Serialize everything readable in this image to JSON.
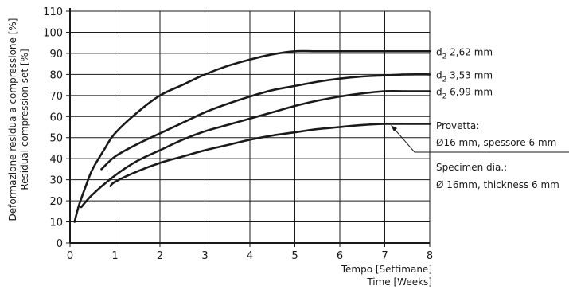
{
  "chart_data": {
    "type": "line",
    "xlabel": [
      "Tempo [Settimane]",
      "Time [Weeks]"
    ],
    "ylabel": [
      "Deformazione residua a compressione [%]",
      "Residual compression set [%]"
    ],
    "xlim": [
      0,
      8
    ],
    "ylim": [
      0,
      110
    ],
    "xticks": [
      "0",
      "1",
      "2",
      "3",
      "4",
      "5",
      "6",
      "7",
      "8"
    ],
    "yticks": [
      "0",
      "10",
      "20",
      "30",
      "40",
      "50",
      "60",
      "70",
      "80",
      "90",
      "100",
      "110"
    ],
    "grid": true,
    "series": [
      {
        "name": "d2 2,62 mm",
        "label_main": "d",
        "label_sub": "2",
        "label_rest": " 2,62 mm",
        "x": [
          0.1,
          0.2,
          0.35,
          0.5,
          0.75,
          1.0,
          1.5,
          2.0,
          2.5,
          3.0,
          3.5,
          4.0,
          4.5,
          5.0,
          5.5,
          6.0,
          7.0,
          8.0
        ],
        "y": [
          10,
          18,
          27,
          35,
          44,
          52,
          62,
          70,
          75,
          80,
          84,
          87,
          89.5,
          91,
          91,
          91,
          91,
          91
        ]
      },
      {
        "name": "d2 3,53 mm",
        "label_main": "d",
        "label_sub": "2",
        "label_rest": " 3,53 mm",
        "x": [
          0.7,
          1.0,
          1.5,
          2.0,
          2.5,
          3.0,
          3.5,
          4.0,
          4.5,
          5.0,
          5.5,
          6.0,
          6.5,
          7.0,
          7.5,
          8.0
        ],
        "y": [
          35,
          41,
          47,
          52,
          57,
          62,
          66,
          69.5,
          72.5,
          74.5,
          76.5,
          78,
          79,
          79.5,
          80,
          80
        ]
      },
      {
        "name": "d2 6,99 mm",
        "label_main": "d",
        "label_sub": "2",
        "label_rest": " 6,99 mm",
        "x": [
          0.25,
          0.5,
          1.0,
          1.5,
          2.0,
          2.5,
          3.0,
          3.5,
          4.0,
          4.5,
          5.0,
          5.5,
          6.0,
          6.5,
          7.0,
          7.5,
          8.0
        ],
        "y": [
          17,
          23,
          32,
          39,
          44,
          49,
          53,
          56,
          59,
          62,
          65,
          67.5,
          69.5,
          71,
          72,
          72,
          72
        ]
      },
      {
        "name": "Provetta",
        "x": [
          0.9,
          1.0,
          1.5,
          2.0,
          2.5,
          3.0,
          3.5,
          4.0,
          4.5,
          5.0,
          5.5,
          6.0,
          6.5,
          7.0,
          7.5,
          8.0
        ],
        "y": [
          27,
          29,
          34,
          38,
          41,
          44,
          46.5,
          49,
          51,
          52.5,
          54,
          55,
          56,
          56.5,
          56.5,
          56.5
        ]
      }
    ],
    "annotations": {
      "provetta_title": "Provetta:",
      "provetta_detail": "Ø16 mm, spessore 6 mm",
      "specimen_title": "Specimen dia.:",
      "specimen_detail": "Ø 16mm, thickness 6 mm"
    }
  }
}
